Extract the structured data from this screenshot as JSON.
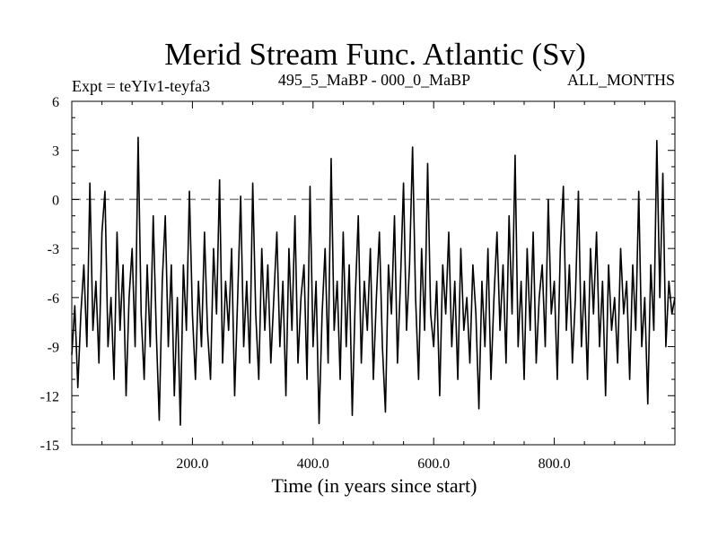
{
  "chart_data": {
    "type": "line",
    "title": "Merid Stream Func. Atlantic (Sv)",
    "subtitle_left": "Expt = teYIv1-teyfa3",
    "subtitle_center": "495_5_MaBP - 000_0_MaBP",
    "subtitle_right": "ALL_MONTHS",
    "xlabel": "Time (in years since start)",
    "ylabel": "",
    "xlim": [
      0,
      1000
    ],
    "ylim": [
      -15,
      6
    ],
    "x_ticks": [
      200,
      400,
      600,
      800
    ],
    "x_tick_labels": [
      "200.0",
      "400.0",
      "600.0",
      "800.0"
    ],
    "y_ticks": [
      -15,
      -12,
      -9,
      -6,
      -3,
      0,
      3,
      6
    ],
    "y_tick_labels": [
      "-15",
      "-12",
      "-9",
      "-6",
      "-3",
      "0",
      "3",
      "6"
    ],
    "reference_line": {
      "y": 0,
      "style": "dashed",
      "color": "#808080"
    },
    "grid": false,
    "series": [
      {
        "color": "#000000",
        "points": [
          [
            0,
            -9.5
          ],
          [
            5,
            -6.5
          ],
          [
            10,
            -11.5
          ],
          [
            15,
            -7
          ],
          [
            20,
            -4
          ],
          [
            25,
            -9
          ],
          [
            30,
            1
          ],
          [
            35,
            -8
          ],
          [
            40,
            -5
          ],
          [
            45,
            -10
          ],
          [
            50,
            -2
          ],
          [
            55,
            0.5
          ],
          [
            60,
            -9
          ],
          [
            65,
            -6
          ],
          [
            70,
            -11
          ],
          [
            75,
            -2
          ],
          [
            80,
            -8
          ],
          [
            85,
            -4
          ],
          [
            90,
            -12
          ],
          [
            95,
            -6
          ],
          [
            100,
            -3
          ],
          [
            105,
            -9
          ],
          [
            110,
            3.8
          ],
          [
            115,
            -7
          ],
          [
            120,
            -11
          ],
          [
            125,
            -4
          ],
          [
            130,
            -9
          ],
          [
            135,
            -1
          ],
          [
            140,
            -8
          ],
          [
            145,
            -13.5
          ],
          [
            150,
            -5
          ],
          [
            155,
            -1
          ],
          [
            160,
            -9
          ],
          [
            165,
            -4
          ],
          [
            170,
            -12
          ],
          [
            175,
            -6
          ],
          [
            180,
            -13.8
          ],
          [
            185,
            -4
          ],
          [
            190,
            -8
          ],
          [
            195,
            0.5
          ],
          [
            200,
            -7
          ],
          [
            205,
            -11
          ],
          [
            210,
            -5
          ],
          [
            215,
            -9
          ],
          [
            220,
            -2
          ],
          [
            225,
            -8
          ],
          [
            230,
            -11
          ],
          [
            235,
            -3
          ],
          [
            240,
            -7
          ],
          [
            245,
            1.2
          ],
          [
            250,
            -10
          ],
          [
            255,
            -5
          ],
          [
            260,
            -8
          ],
          [
            265,
            -3
          ],
          [
            270,
            -12
          ],
          [
            275,
            -6
          ],
          [
            280,
            0.2
          ],
          [
            285,
            -9
          ],
          [
            290,
            -5
          ],
          [
            295,
            -10
          ],
          [
            300,
            1
          ],
          [
            305,
            -7
          ],
          [
            310,
            -11
          ],
          [
            315,
            -3
          ],
          [
            320,
            -8
          ],
          [
            325,
            -4
          ],
          [
            330,
            -10
          ],
          [
            335,
            -6
          ],
          [
            340,
            -2
          ],
          [
            345,
            -9
          ],
          [
            350,
            -5
          ],
          [
            355,
            -12
          ],
          [
            360,
            -3
          ],
          [
            365,
            -8
          ],
          [
            370,
            -1
          ],
          [
            375,
            -10
          ],
          [
            380,
            -6
          ],
          [
            385,
            -4
          ],
          [
            390,
            -11
          ],
          [
            395,
            0.8
          ],
          [
            400,
            -9
          ],
          [
            405,
            -5
          ],
          [
            410,
            -13.7
          ],
          [
            415,
            -7
          ],
          [
            420,
            -3
          ],
          [
            425,
            -10
          ],
          [
            430,
            2.5
          ],
          [
            435,
            -8
          ],
          [
            440,
            -5
          ],
          [
            445,
            -11
          ],
          [
            450,
            -2
          ],
          [
            455,
            -9
          ],
          [
            460,
            -4
          ],
          [
            465,
            -13.2
          ],
          [
            470,
            -6
          ],
          [
            475,
            -1
          ],
          [
            480,
            -10
          ],
          [
            485,
            -5
          ],
          [
            490,
            -8
          ],
          [
            495,
            -3
          ],
          [
            500,
            -11
          ],
          [
            505,
            -6
          ],
          [
            510,
            -2
          ],
          [
            515,
            -9
          ],
          [
            520,
            -13
          ],
          [
            525,
            -4
          ],
          [
            530,
            -7
          ],
          [
            535,
            -1
          ],
          [
            540,
            -10
          ],
          [
            545,
            -5
          ],
          [
            550,
            1
          ],
          [
            555,
            -8
          ],
          [
            560,
            -4
          ],
          [
            565,
            3.2
          ],
          [
            570,
            -6
          ],
          [
            575,
            -11
          ],
          [
            580,
            -3
          ],
          [
            585,
            -8
          ],
          [
            590,
            2.2
          ],
          [
            595,
            -7
          ],
          [
            600,
            -9
          ],
          [
            605,
            -5
          ],
          [
            610,
            -12
          ],
          [
            615,
            -4
          ],
          [
            620,
            -7
          ],
          [
            625,
            -2
          ],
          [
            630,
            -9
          ],
          [
            635,
            -5
          ],
          [
            640,
            -11
          ],
          [
            645,
            -3
          ],
          [
            650,
            -8
          ],
          [
            655,
            -6
          ],
          [
            660,
            -10
          ],
          [
            665,
            -4
          ],
          [
            670,
            -7
          ],
          [
            675,
            -12.8
          ],
          [
            680,
            -5
          ],
          [
            685,
            -9
          ],
          [
            690,
            -3
          ],
          [
            695,
            -11
          ],
          [
            700,
            -6
          ],
          [
            705,
            -2
          ],
          [
            710,
            -8
          ],
          [
            715,
            -4
          ],
          [
            720,
            -10
          ],
          [
            725,
            -1
          ],
          [
            730,
            -7
          ],
          [
            735,
            2.7
          ],
          [
            740,
            -9
          ],
          [
            745,
            -5
          ],
          [
            750,
            -11
          ],
          [
            755,
            -3
          ],
          [
            760,
            -8
          ],
          [
            765,
            -2
          ],
          [
            770,
            -10
          ],
          [
            775,
            -6
          ],
          [
            780,
            -4
          ],
          [
            785,
            -9
          ],
          [
            790,
            0
          ],
          [
            795,
            -7
          ],
          [
            800,
            -5
          ],
          [
            805,
            -11
          ],
          [
            810,
            -3
          ],
          [
            815,
            0.8
          ],
          [
            820,
            -8
          ],
          [
            825,
            -4
          ],
          [
            830,
            -10
          ],
          [
            835,
            -6
          ],
          [
            840,
            0.5
          ],
          [
            845,
            -9
          ],
          [
            850,
            -5
          ],
          [
            855,
            -11
          ],
          [
            860,
            -3
          ],
          [
            865,
            -7
          ],
          [
            870,
            -2
          ],
          [
            875,
            -9
          ],
          [
            880,
            -5
          ],
          [
            885,
            -12
          ],
          [
            890,
            -4
          ],
          [
            895,
            -8
          ],
          [
            900,
            -6
          ],
          [
            905,
            -10
          ],
          [
            910,
            -3
          ],
          [
            915,
            -7
          ],
          [
            920,
            -5
          ],
          [
            925,
            -11
          ],
          [
            930,
            -4
          ],
          [
            935,
            -8
          ],
          [
            940,
            0.5
          ],
          [
            945,
            -9
          ],
          [
            950,
            -6
          ],
          [
            955,
            -12.5
          ],
          [
            960,
            -4
          ],
          [
            965,
            -8
          ],
          [
            970,
            3.6
          ],
          [
            975,
            -6
          ],
          [
            980,
            1.6
          ],
          [
            985,
            -9
          ],
          [
            990,
            -5
          ],
          [
            995,
            -7
          ],
          [
            1000,
            -6
          ]
        ]
      }
    ]
  }
}
